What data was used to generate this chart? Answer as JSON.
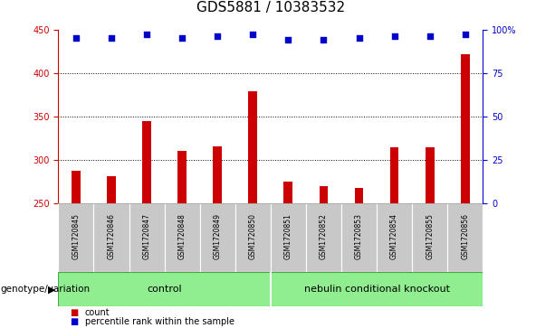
{
  "title": "GDS5881 / 10383532",
  "samples": [
    "GSM1720845",
    "GSM1720846",
    "GSM1720847",
    "GSM1720848",
    "GSM1720849",
    "GSM1720850",
    "GSM1720851",
    "GSM1720852",
    "GSM1720853",
    "GSM1720854",
    "GSM1720855",
    "GSM1720856"
  ],
  "counts": [
    288,
    281,
    345,
    310,
    316,
    379,
    275,
    270,
    268,
    314,
    314,
    422
  ],
  "percentiles": [
    95,
    95,
    97,
    95,
    96,
    97,
    94,
    94,
    95,
    96,
    96,
    97
  ],
  "ylim_left": [
    250,
    450
  ],
  "ylim_right": [
    0,
    100
  ],
  "yticks_left": [
    250,
    300,
    350,
    400,
    450
  ],
  "yticks_right": [
    0,
    25,
    50,
    75,
    100
  ],
  "ytick_labels_right": [
    "0",
    "25",
    "50",
    "75",
    "100%"
  ],
  "bar_color": "#cc0000",
  "dot_color": "#0000cc",
  "bar_bottom": 250,
  "control_label": "control",
  "ko_label": "nebulin conditional knockout",
  "group_color": "#90ee90",
  "sample_box_color": "#c8c8c8",
  "group_label_prefix": "genotype/variation",
  "legend_items": [
    {
      "color": "#cc0000",
      "label": "count"
    },
    {
      "color": "#0000cc",
      "label": "percentile rank within the sample"
    }
  ],
  "grid_color": "black",
  "title_fontsize": 11,
  "tick_fontsize": 7,
  "bar_width": 0.25
}
